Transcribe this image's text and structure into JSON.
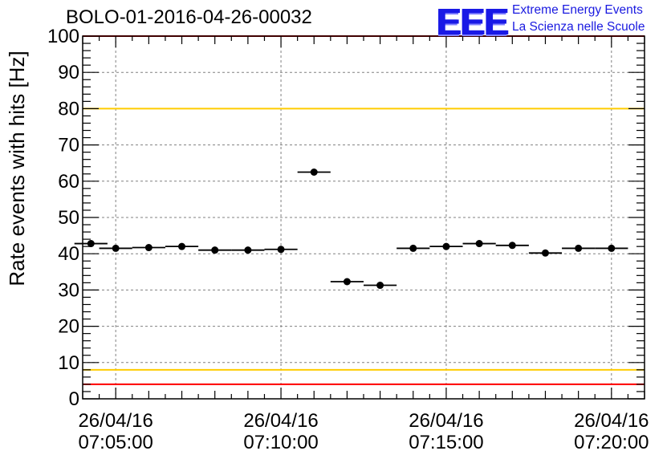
{
  "header": {
    "run_title": "BOLO-01-2016-04-26-00032",
    "logo": {
      "letters": "EEE",
      "line1": "Extreme Energy Events",
      "line2": "La Scienza nelle Scuole"
    }
  },
  "colors": {
    "axis": "#000000",
    "grid": "#808080",
    "points": "#000000",
    "upper_red_line": "#ff0000",
    "lower_red_line": "#ff0000",
    "upper_yellow_line": "#ffcc00",
    "lower_yellow_line": "#ffcc00",
    "logo_blue": "#1919e6"
  },
  "chart_data": {
    "type": "scatter",
    "title": "BOLO-01-2016-04-26-00032",
    "ylabel": "Rate events with hits [Hz]",
    "xlabel": "",
    "ylim": [
      0,
      100
    ],
    "yticks": [
      0,
      10,
      20,
      30,
      40,
      50,
      60,
      70,
      80,
      90,
      100
    ],
    "xlim": [
      "07:04:00",
      "07:21:00"
    ],
    "x_unit": "time (HH:MM:SS) on 26/04/16",
    "xticks": [
      {
        "value": "07:05:00",
        "label_date": "26/04/16",
        "label_time": "07:05:00"
      },
      {
        "value": "07:10:00",
        "label_date": "26/04/16",
        "label_time": "07:10:00"
      },
      {
        "value": "07:15:00",
        "label_date": "26/04/16",
        "label_time": "07:15:00"
      },
      {
        "value": "07:20:00",
        "label_date": "26/04/16",
        "label_time": "07:20:00"
      }
    ],
    "grid": true,
    "reference_lines": [
      {
        "y": 100,
        "color": "red"
      },
      {
        "y": 80,
        "color": "yellow"
      },
      {
        "y": 8,
        "color": "yellow"
      },
      {
        "y": 4,
        "color": "red"
      }
    ],
    "series": [
      {
        "points": [
          {
            "x": "07:04:15",
            "x_start": "07:03:45",
            "x_end": "07:04:45",
            "y": 42.8
          },
          {
            "x": "07:05:00",
            "x_start": "07:04:30",
            "x_end": "07:05:30",
            "y": 41.5
          },
          {
            "x": "07:06:00",
            "x_start": "07:05:30",
            "x_end": "07:06:30",
            "y": 41.7
          },
          {
            "x": "07:07:00",
            "x_start": "07:06:30",
            "x_end": "07:07:30",
            "y": 42.0
          },
          {
            "x": "07:08:00",
            "x_start": "07:07:30",
            "x_end": "07:08:30",
            "y": 41.0
          },
          {
            "x": "07:09:00",
            "x_start": "07:08:30",
            "x_end": "07:09:30",
            "y": 41.0
          },
          {
            "x": "07:10:00",
            "x_start": "07:09:30",
            "x_end": "07:10:30",
            "y": 41.2
          },
          {
            "x": "07:11:00",
            "x_start": "07:10:30",
            "x_end": "07:11:30",
            "y": 62.5
          },
          {
            "x": "07:12:00",
            "x_start": "07:11:30",
            "x_end": "07:12:30",
            "y": 32.3
          },
          {
            "x": "07:13:00",
            "x_start": "07:12:30",
            "x_end": "07:13:30",
            "y": 31.3
          },
          {
            "x": "07:14:00",
            "x_start": "07:13:30",
            "x_end": "07:14:30",
            "y": 41.5
          },
          {
            "x": "07:15:00",
            "x_start": "07:14:30",
            "x_end": "07:15:30",
            "y": 42.0
          },
          {
            "x": "07:16:00",
            "x_start": "07:15:30",
            "x_end": "07:16:30",
            "y": 42.8
          },
          {
            "x": "07:17:00",
            "x_start": "07:16:30",
            "x_end": "07:17:30",
            "y": 42.3
          },
          {
            "x": "07:18:00",
            "x_start": "07:17:30",
            "x_end": "07:18:30",
            "y": 40.2
          },
          {
            "x": "07:19:00",
            "x_start": "07:18:30",
            "x_end": "07:19:30",
            "y": 41.5
          },
          {
            "x": "07:20:00",
            "x_start": "07:19:30",
            "x_end": "07:20:30",
            "y": 41.5
          }
        ]
      }
    ]
  }
}
